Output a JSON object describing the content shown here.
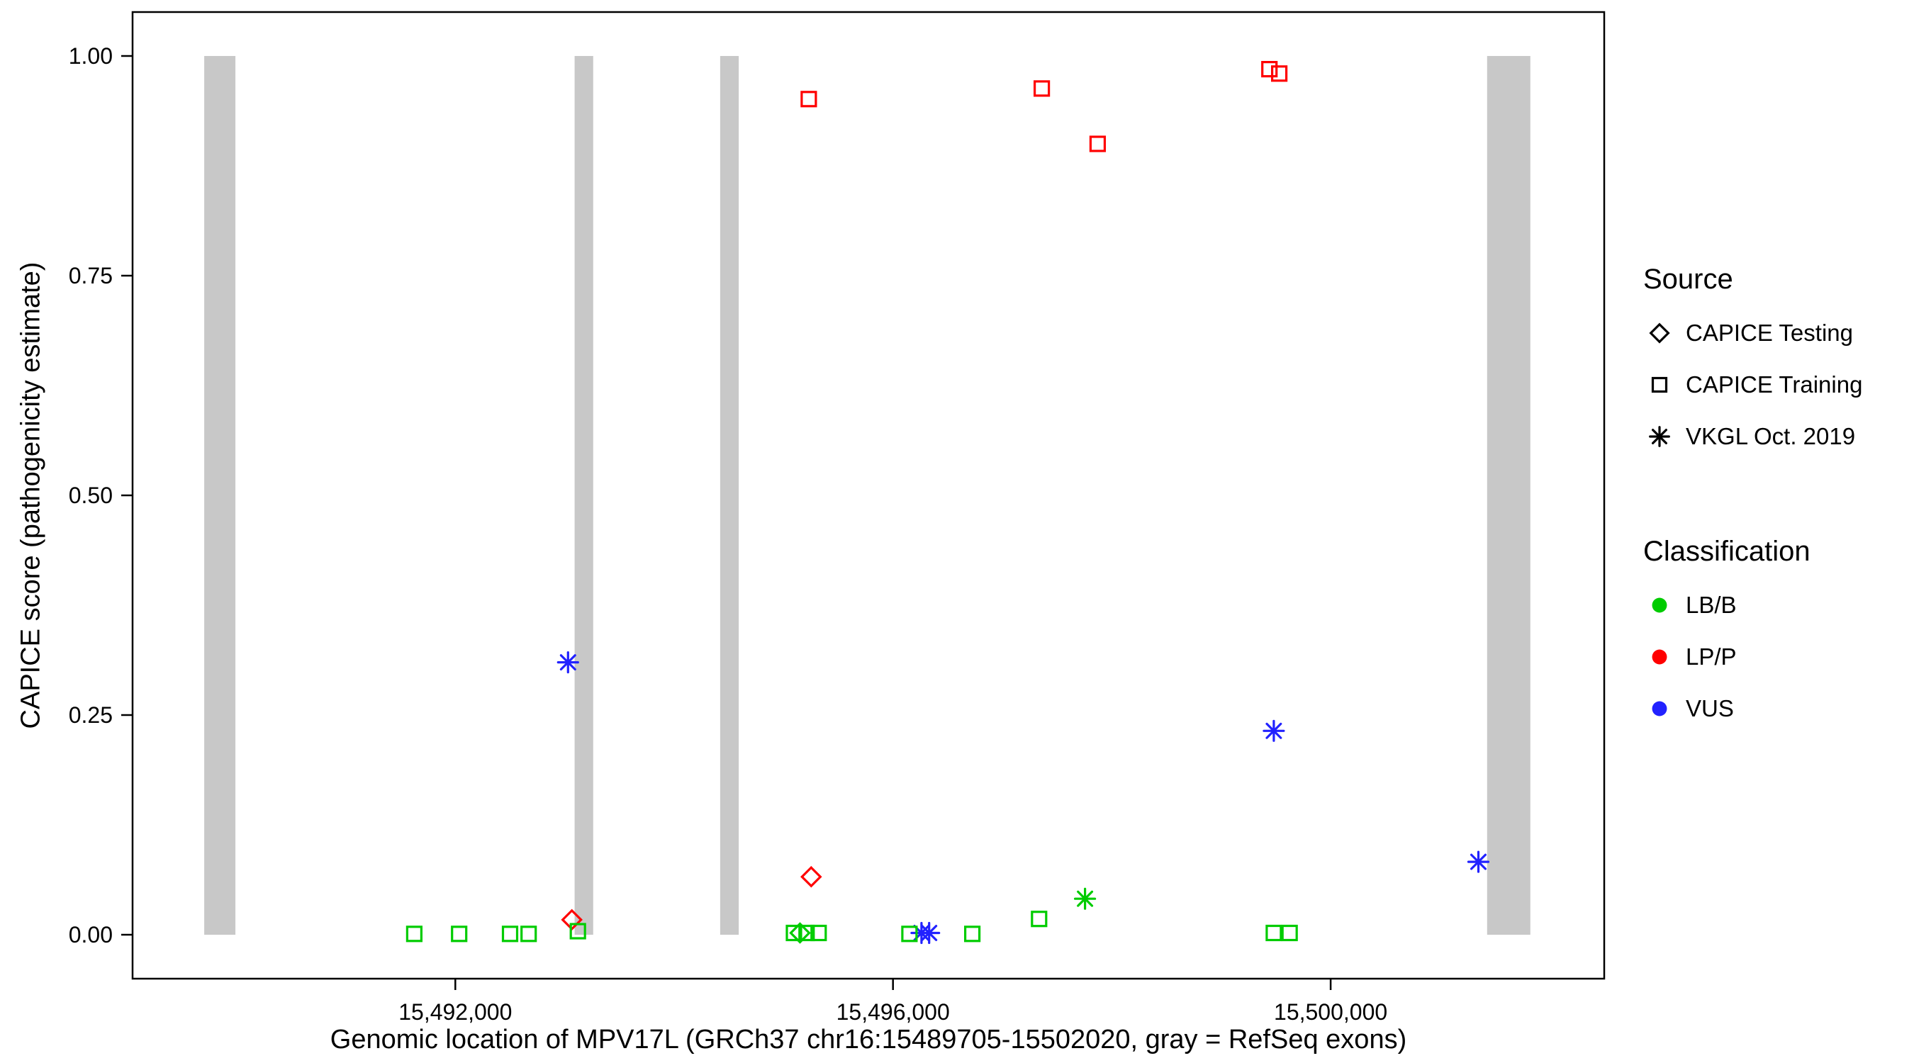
{
  "figure": {
    "xlabel": "Genomic location of MPV17L (GRCh37 chr16:15489705-15502020, gray = RefSeq exons)",
    "ylabel": "CAPICE score (pathogenicity estimate)"
  },
  "legend": {
    "source_title": "Source",
    "source_items": [
      {
        "key": "capice-testing",
        "label": "CAPICE Testing",
        "marker": "diamond"
      },
      {
        "key": "capice-training",
        "label": "CAPICE Training",
        "marker": "square"
      },
      {
        "key": "vkgl-oct-2019",
        "label": "VKGL Oct. 2019",
        "marker": "asterisk"
      }
    ],
    "classification_title": "Classification",
    "classification_items": [
      {
        "key": "lb-b",
        "label": "LB/B",
        "color": "#00CC00"
      },
      {
        "key": "lp-p",
        "label": "LP/P",
        "color": "#FF0000"
      },
      {
        "key": "vus",
        "label": "VUS",
        "color": "#2222FF"
      }
    ]
  },
  "chart_data": {
    "type": "scatter",
    "title": "",
    "xlabel": "Genomic location of MPV17L (GRCh37 chr16:15489705-15502020, gray = RefSeq exons)",
    "ylabel": "CAPICE score (pathogenicity estimate)",
    "xlim": [
      15489705,
      15502020
    ],
    "ylim": [
      0,
      1
    ],
    "xlim_expanded": [
      15489050,
      15502500
    ],
    "ylim_expanded": [
      -0.05,
      1.05
    ],
    "grid": false,
    "legend_position": "right",
    "x_ticks": [
      {
        "value": 15492000,
        "label": "15,492,000"
      },
      {
        "value": 15496000,
        "label": "15,496,000"
      },
      {
        "value": 15500000,
        "label": "15,500,000"
      }
    ],
    "y_ticks": [
      {
        "value": 0.0,
        "label": "0.00"
      },
      {
        "value": 0.25,
        "label": "0.25"
      },
      {
        "value": 0.5,
        "label": "0.50"
      },
      {
        "value": 0.75,
        "label": "0.75"
      },
      {
        "value": 1.0,
        "label": "1.00"
      }
    ],
    "exon_color": "#C8C8C8",
    "exons": [
      [
        15489705,
        15489990
      ],
      [
        15493090,
        15493260
      ],
      [
        15494420,
        15494590
      ],
      [
        15501430,
        15501825
      ]
    ],
    "series": [
      {
        "name": "LP/P - CAPICE Training",
        "classification": "LP/P",
        "source": "CAPICE Training",
        "marker": "square",
        "color": "#FF0000",
        "points": [
          [
            15495230,
            0.951
          ],
          [
            15497360,
            0.963
          ],
          [
            15497870,
            0.9
          ],
          [
            15499440,
            0.985
          ],
          [
            15499530,
            0.98
          ]
        ]
      },
      {
        "name": "LP/P - CAPICE Testing",
        "classification": "LP/P",
        "source": "CAPICE Testing",
        "marker": "diamond",
        "color": "#FF0000",
        "points": [
          [
            15493065,
            0.017
          ],
          [
            15495252,
            0.066
          ]
        ]
      },
      {
        "name": "VUS - VKGL Oct. 2019",
        "classification": "VUS",
        "source": "VKGL Oct. 2019",
        "marker": "asterisk",
        "color": "#2222FF",
        "points": [
          [
            15493030,
            0.31
          ],
          [
            15496260,
            0.002
          ],
          [
            15496330,
            0.002
          ],
          [
            15499480,
            0.232
          ],
          [
            15501350,
            0.083
          ]
        ]
      },
      {
        "name": "LB/B - CAPICE Training",
        "classification": "LB/B",
        "source": "CAPICE Training",
        "marker": "square",
        "color": "#00CC00",
        "points": [
          [
            15491625,
            0.001
          ],
          [
            15492035,
            0.001
          ],
          [
            15492500,
            0.001
          ],
          [
            15492670,
            0.001
          ],
          [
            15493120,
            0.004
          ],
          [
            15495095,
            0.002
          ],
          [
            15495210,
            0.002
          ],
          [
            15495320,
            0.002
          ],
          [
            15496150,
            0.001
          ],
          [
            15496725,
            0.001
          ],
          [
            15497335,
            0.018
          ],
          [
            15499480,
            0.002
          ],
          [
            15499625,
            0.002
          ]
        ]
      },
      {
        "name": "LB/B - CAPICE Testing",
        "classification": "LB/B",
        "source": "CAPICE Testing",
        "marker": "diamond",
        "color": "#00CC00",
        "points": [
          [
            15495150,
            0.002
          ]
        ]
      },
      {
        "name": "LB/B - VKGL Oct. 2019",
        "classification": "LB/B",
        "source": "VKGL Oct. 2019",
        "marker": "asterisk",
        "color": "#00CC00",
        "points": [
          [
            15497755,
            0.041
          ]
        ]
      }
    ]
  }
}
